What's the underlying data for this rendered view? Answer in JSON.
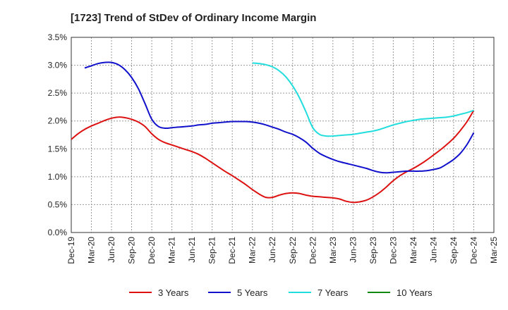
{
  "chart_data": {
    "type": "line",
    "title": "[1723]  Trend of StDev of Ordinary Income Margin",
    "xlabel": "",
    "ylabel": "",
    "ylim": [
      0,
      3.5
    ],
    "yticks": [
      "0.0%",
      "0.5%",
      "1.0%",
      "1.5%",
      "2.0%",
      "2.5%",
      "3.0%",
      "3.5%"
    ],
    "xticks": [
      "Dec-19",
      "Mar-20",
      "Jun-20",
      "Sep-20",
      "Dec-20",
      "Mar-21",
      "Jun-21",
      "Sep-21",
      "Dec-21",
      "Mar-22",
      "Jun-22",
      "Sep-22",
      "Dec-22",
      "Mar-23",
      "Jun-23",
      "Sep-23",
      "Dec-23",
      "Mar-24",
      "Jun-24",
      "Sep-24",
      "Dec-24",
      "Mar-25"
    ],
    "grid": true,
    "legend_position": "bottom",
    "series": [
      {
        "name": "3 Years",
        "color": "#dd1111",
        "points": [
          [
            "Dec-19",
            1.67
          ],
          [
            "Jan-20",
            1.77
          ],
          [
            "Feb-20",
            1.85
          ],
          [
            "Mar-20",
            1.91
          ],
          [
            "Apr-20",
            1.96
          ],
          [
            "May-20",
            2.01
          ],
          [
            "Jun-20",
            2.05
          ],
          [
            "Jul-20",
            2.07
          ],
          [
            "Aug-20",
            2.06
          ],
          [
            "Sep-20",
            2.03
          ],
          [
            "Oct-20",
            1.98
          ],
          [
            "Nov-20",
            1.9
          ],
          [
            "Dec-20",
            1.77
          ],
          [
            "Jan-21",
            1.67
          ],
          [
            "Feb-21",
            1.61
          ],
          [
            "Mar-21",
            1.57
          ],
          [
            "Apr-21",
            1.53
          ],
          [
            "May-21",
            1.49
          ],
          [
            "Jun-21",
            1.45
          ],
          [
            "Jul-21",
            1.4
          ],
          [
            "Aug-21",
            1.33
          ],
          [
            "Sep-21",
            1.25
          ],
          [
            "Oct-21",
            1.17
          ],
          [
            "Nov-21",
            1.09
          ],
          [
            "Dec-21",
            1.02
          ],
          [
            "Jan-22",
            0.94
          ],
          [
            "Feb-22",
            0.86
          ],
          [
            "Mar-22",
            0.77
          ],
          [
            "Apr-22",
            0.69
          ],
          [
            "May-22",
            0.63
          ],
          [
            "Jun-22",
            0.63
          ],
          [
            "Jul-22",
            0.67
          ],
          [
            "Aug-22",
            0.7
          ],
          [
            "Sep-22",
            0.71
          ],
          [
            "Oct-22",
            0.7
          ],
          [
            "Nov-22",
            0.67
          ],
          [
            "Dec-22",
            0.65
          ],
          [
            "Jan-23",
            0.64
          ],
          [
            "Feb-23",
            0.63
          ],
          [
            "Mar-23",
            0.62
          ],
          [
            "Apr-23",
            0.6
          ],
          [
            "May-23",
            0.56
          ],
          [
            "Jun-23",
            0.54
          ],
          [
            "Jul-23",
            0.55
          ],
          [
            "Aug-23",
            0.58
          ],
          [
            "Sep-23",
            0.64
          ],
          [
            "Oct-23",
            0.72
          ],
          [
            "Nov-23",
            0.82
          ],
          [
            "Dec-23",
            0.93
          ],
          [
            "Jan-24",
            1.02
          ],
          [
            "Feb-24",
            1.09
          ],
          [
            "Mar-24",
            1.15
          ],
          [
            "Apr-24",
            1.22
          ],
          [
            "May-24",
            1.3
          ],
          [
            "Jun-24",
            1.39
          ],
          [
            "Jul-24",
            1.48
          ],
          [
            "Aug-24",
            1.58
          ],
          [
            "Sep-24",
            1.69
          ],
          [
            "Oct-24",
            1.83
          ],
          [
            "Nov-24",
            1.99
          ],
          [
            "Dec-24",
            2.19
          ]
        ]
      },
      {
        "name": "5 Years",
        "color": "#1111cc",
        "points": [
          [
            "Feb-20",
            2.95
          ],
          [
            "Mar-20",
            2.99
          ],
          [
            "Apr-20",
            3.03
          ],
          [
            "May-20",
            3.05
          ],
          [
            "Jun-20",
            3.05
          ],
          [
            "Jul-20",
            3.01
          ],
          [
            "Aug-20",
            2.92
          ],
          [
            "Sep-20",
            2.78
          ],
          [
            "Oct-20",
            2.58
          ],
          [
            "Nov-20",
            2.31
          ],
          [
            "Dec-20",
            2.03
          ],
          [
            "Jan-21",
            1.9
          ],
          [
            "Feb-21",
            1.87
          ],
          [
            "Mar-21",
            1.88
          ],
          [
            "Apr-21",
            1.89
          ],
          [
            "May-21",
            1.9
          ],
          [
            "Jun-21",
            1.91
          ],
          [
            "Jul-21",
            1.93
          ],
          [
            "Aug-21",
            1.94
          ],
          [
            "Sep-21",
            1.96
          ],
          [
            "Oct-21",
            1.97
          ],
          [
            "Nov-21",
            1.98
          ],
          [
            "Dec-21",
            1.99
          ],
          [
            "Jan-22",
            1.99
          ],
          [
            "Feb-22",
            1.99
          ],
          [
            "Mar-22",
            1.98
          ],
          [
            "Apr-22",
            1.96
          ],
          [
            "May-22",
            1.93
          ],
          [
            "Jun-22",
            1.89
          ],
          [
            "Jul-22",
            1.85
          ],
          [
            "Aug-22",
            1.8
          ],
          [
            "Sep-22",
            1.76
          ],
          [
            "Oct-22",
            1.7
          ],
          [
            "Nov-22",
            1.62
          ],
          [
            "Dec-22",
            1.51
          ],
          [
            "Jan-23",
            1.42
          ],
          [
            "Feb-23",
            1.36
          ],
          [
            "Mar-23",
            1.31
          ],
          [
            "Apr-23",
            1.27
          ],
          [
            "May-23",
            1.24
          ],
          [
            "Jun-23",
            1.21
          ],
          [
            "Jul-23",
            1.18
          ],
          [
            "Aug-23",
            1.15
          ],
          [
            "Sep-23",
            1.11
          ],
          [
            "Oct-23",
            1.08
          ],
          [
            "Nov-23",
            1.07
          ],
          [
            "Dec-23",
            1.08
          ],
          [
            "Jan-24",
            1.09
          ],
          [
            "Feb-24",
            1.1
          ],
          [
            "Mar-24",
            1.1
          ],
          [
            "Apr-24",
            1.1
          ],
          [
            "May-24",
            1.11
          ],
          [
            "Jun-24",
            1.13
          ],
          [
            "Jul-24",
            1.16
          ],
          [
            "Aug-24",
            1.23
          ],
          [
            "Sep-24",
            1.31
          ],
          [
            "Oct-24",
            1.42
          ],
          [
            "Nov-24",
            1.58
          ],
          [
            "Dec-24",
            1.79
          ]
        ]
      },
      {
        "name": "7 Years",
        "color": "#22dddd",
        "points": [
          [
            "Mar-22",
            3.04
          ],
          [
            "Apr-22",
            3.03
          ],
          [
            "May-22",
            3.01
          ],
          [
            "Jun-22",
            2.97
          ],
          [
            "Jul-22",
            2.9
          ],
          [
            "Aug-22",
            2.79
          ],
          [
            "Sep-22",
            2.63
          ],
          [
            "Oct-22",
            2.42
          ],
          [
            "Nov-22",
            2.16
          ],
          [
            "Dec-22",
            1.88
          ],
          [
            "Jan-23",
            1.76
          ],
          [
            "Feb-23",
            1.73
          ],
          [
            "Mar-23",
            1.73
          ],
          [
            "Apr-23",
            1.74
          ],
          [
            "May-23",
            1.75
          ],
          [
            "Jun-23",
            1.76
          ],
          [
            "Jul-23",
            1.78
          ],
          [
            "Aug-23",
            1.8
          ],
          [
            "Sep-23",
            1.82
          ],
          [
            "Oct-23",
            1.85
          ],
          [
            "Nov-23",
            1.89
          ],
          [
            "Dec-23",
            1.93
          ],
          [
            "Jan-24",
            1.96
          ],
          [
            "Feb-24",
            1.99
          ],
          [
            "Mar-24",
            2.01
          ],
          [
            "Apr-24",
            2.03
          ],
          [
            "May-24",
            2.04
          ],
          [
            "Jun-24",
            2.05
          ],
          [
            "Jul-24",
            2.06
          ],
          [
            "Aug-24",
            2.07
          ],
          [
            "Sep-24",
            2.09
          ],
          [
            "Oct-24",
            2.12
          ],
          [
            "Nov-24",
            2.15
          ],
          [
            "Dec-24",
            2.19
          ]
        ]
      },
      {
        "name": "10 Years",
        "color": "#118811",
        "points": []
      }
    ]
  }
}
